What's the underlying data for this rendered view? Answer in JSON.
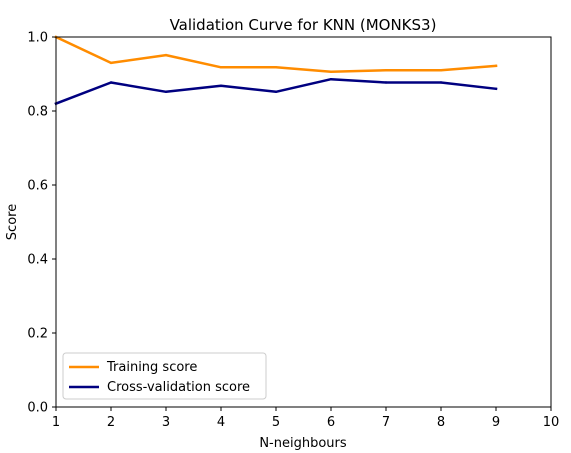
{
  "chart_data": {
    "type": "line",
    "title": "Validation Curve for KNN (MONKS3)",
    "xlabel": "N-neighbours",
    "ylabel": "Score",
    "xlim": [
      1,
      10
    ],
    "ylim": [
      0.0,
      1.0
    ],
    "xticks": [
      "1",
      "2",
      "3",
      "4",
      "5",
      "6",
      "7",
      "8",
      "9",
      "10"
    ],
    "yticks": [
      "0.0",
      "0.2",
      "0.4",
      "0.6",
      "0.8",
      "1.0"
    ],
    "grid": false,
    "legend_position": "lower-left",
    "x": [
      1,
      2,
      3,
      4,
      5,
      6,
      7,
      8,
      9
    ],
    "series": [
      {
        "name": "Training score",
        "color": "#ff8c00",
        "values": [
          1.0,
          0.93,
          0.951,
          0.918,
          0.918,
          0.906,
          0.91,
          0.91,
          0.922
        ]
      },
      {
        "name": "Cross-validation score",
        "color": "#000080",
        "values": [
          0.82,
          0.877,
          0.852,
          0.868,
          0.852,
          0.886,
          0.877,
          0.877,
          0.86
        ]
      }
    ]
  }
}
